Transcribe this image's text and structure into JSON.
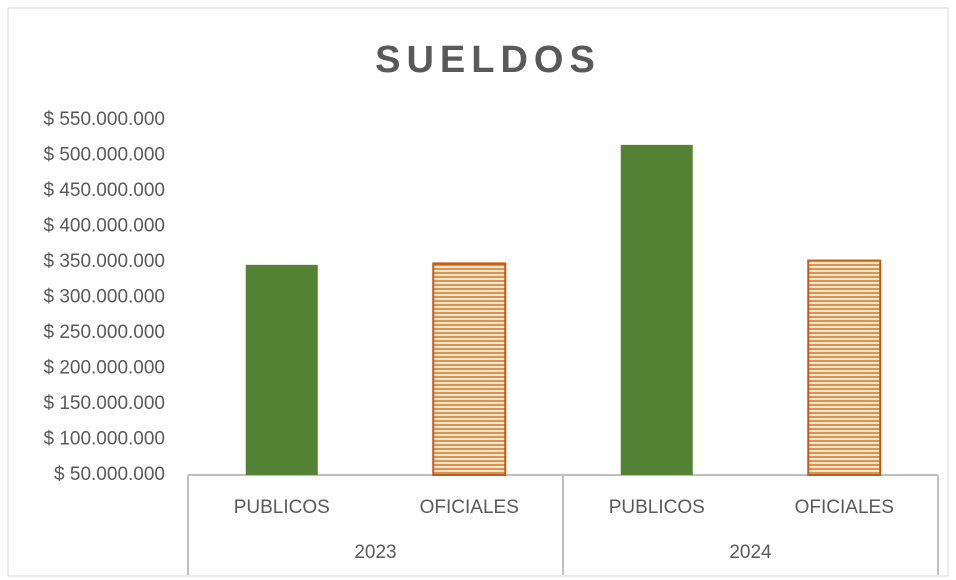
{
  "chart_data": {
    "type": "bar",
    "title": "SUELDOS",
    "groups": [
      {
        "name": "2023",
        "categories": [
          "PUBLICOS",
          "OFICIALES"
        ],
        "values": [
          346000000,
          348000000
        ]
      },
      {
        "name": "2024",
        "categories": [
          "PUBLICOS",
          "OFICIALES"
        ],
        "values": [
          515000000,
          352000000
        ]
      }
    ],
    "category_styles": {
      "PUBLICOS": {
        "fill": "#548235"
      },
      "OFICIALES": {
        "pattern": "horizontal-lines",
        "color": "#c55a11",
        "background": "#f8e6c4"
      }
    },
    "ylim": [
      50000000,
      550000000
    ],
    "yticks": [
      {
        "value": 50000000,
        "label": "$ 50.000.000"
      },
      {
        "value": 100000000,
        "label": "$ 100.000.000"
      },
      {
        "value": 150000000,
        "label": "$ 150.000.000"
      },
      {
        "value": 200000000,
        "label": "$ 200.000.000"
      },
      {
        "value": 250000000,
        "label": "$ 250.000.000"
      },
      {
        "value": 300000000,
        "label": "$ 300.000.000"
      },
      {
        "value": 350000000,
        "label": "$ 350.000.000"
      },
      {
        "value": 400000000,
        "label": "$ 400.000.000"
      },
      {
        "value": 450000000,
        "label": "$ 450.000.000"
      },
      {
        "value": 500000000,
        "label": "$ 500.000.000"
      },
      {
        "value": 550000000,
        "label": "$ 550.000.000"
      }
    ],
    "grid": false
  }
}
